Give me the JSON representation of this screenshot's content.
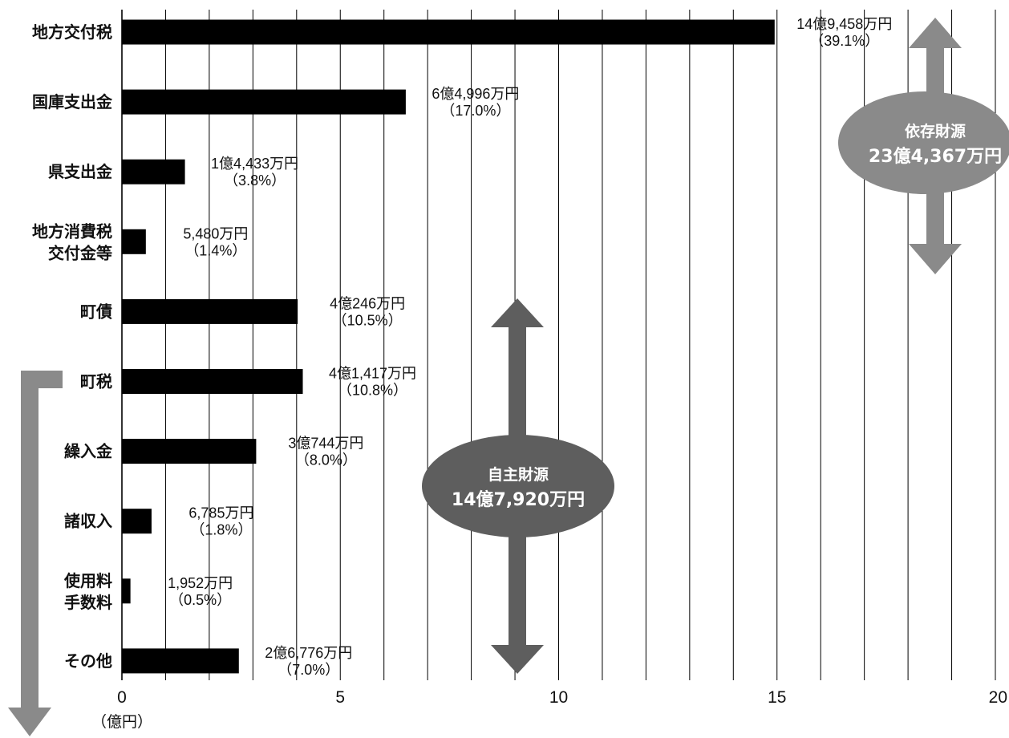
{
  "chart_data": {
    "type": "bar",
    "orientation": "horizontal",
    "categories": [
      [
        "地方交付税"
      ],
      [
        "国庫支出金"
      ],
      [
        "県支出金"
      ],
      [
        "地方消費税",
        "交付金等"
      ],
      [
        "町債"
      ],
      [
        "町税"
      ],
      [
        "繰入金"
      ],
      [
        "諸収入"
      ],
      [
        "使用料",
        "手数料"
      ],
      [
        "その他"
      ]
    ],
    "values": [
      14.9458,
      6.4996,
      1.4433,
      0.548,
      4.0246,
      4.1417,
      3.0744,
      0.6785,
      0.1952,
      2.6776
    ],
    "value_labels": [
      [
        "14億9,458万円",
        "（39.1%）"
      ],
      [
        "6億4,996万円",
        "（17.0%）"
      ],
      [
        "1億4,433万円",
        "（3.8%）"
      ],
      [
        "5,480万円",
        "（1.4%）"
      ],
      [
        "4億246万円",
        "（10.5%）"
      ],
      [
        "4億1,417万円",
        "（10.8%）"
      ],
      [
        "3億744万円",
        "（8.0%）"
      ],
      [
        "6,785万円",
        "（1.8%）"
      ],
      [
        "1,952万円",
        "（0.5%）"
      ],
      [
        "2億6,776万円",
        "（7.0%）"
      ]
    ],
    "xlim": [
      0,
      20
    ],
    "x_ticks": [
      0,
      5,
      10,
      15,
      20
    ],
    "x_unit_label": "（億円）",
    "grid": "vertical lines every 1",
    "bar_color": "#000000",
    "annotations": {
      "dependent": {
        "title": "依存財源",
        "amount": "23億4,367万円",
        "color": "#8a8a8a"
      },
      "own": {
        "title": "自主財源",
        "amount": "14億7,920万円",
        "color": "#5e5e5e"
      }
    }
  }
}
